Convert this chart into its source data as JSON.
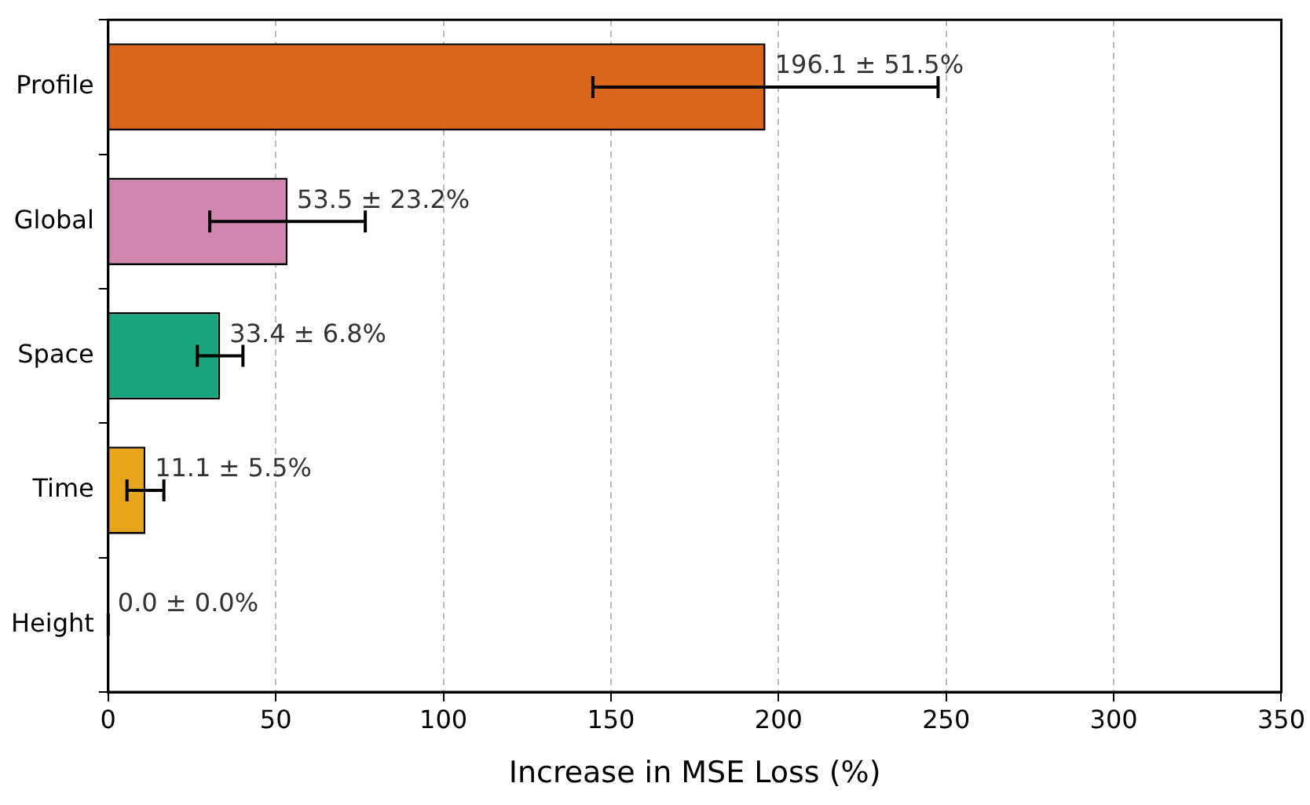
{
  "chart_data": {
    "type": "bar",
    "orientation": "horizontal",
    "xlabel": "Increase in MSE Loss (%)",
    "categories": [
      "Profile",
      "Global",
      "Space",
      "Time",
      "Height"
    ],
    "values": [
      196.1,
      53.5,
      33.4,
      11.1,
      0.0
    ],
    "errors": [
      51.5,
      23.2,
      6.8,
      5.5,
      0.0
    ],
    "value_labels": [
      "196.1 ± 51.5%",
      "53.5 ± 23.2%",
      "33.4 ± 6.8%",
      "11.1 ± 5.5%",
      "0.0 ± 0.0%"
    ],
    "colors": [
      "#d9661a",
      "#d186b0",
      "#1aa57e",
      "#e8a41a",
      "#56b4e9"
    ],
    "xlim": [
      0,
      350
    ],
    "xticks": [
      0,
      50,
      100,
      150,
      200,
      250,
      300,
      350
    ],
    "grid": "x",
    "legend": false
  }
}
